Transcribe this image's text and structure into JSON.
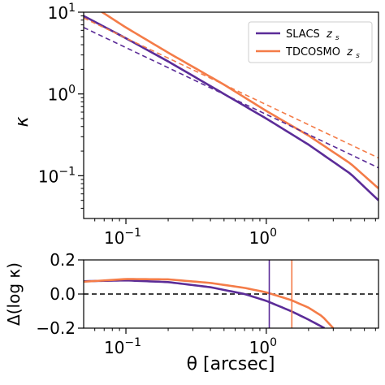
{
  "colors": {
    "slacs": "#5b2c98",
    "tdcosmo": "#f47c48",
    "reference": "#000000"
  },
  "chart_data": [
    {
      "type": "line",
      "panel": "top",
      "ylabel": "κ",
      "xscale": "log",
      "yscale": "log",
      "xlim": [
        0.05,
        6.3
      ],
      "ylim": [
        0.03,
        10
      ],
      "xtick_labels": [
        {
          "value": 0.1,
          "mantissa": "10",
          "exponent": "−1"
        },
        {
          "value": 1,
          "mantissa": "10",
          "exponent": "0"
        }
      ],
      "ytick_labels": [
        {
          "value": 0.1,
          "mantissa": "10",
          "exponent": "−1"
        },
        {
          "value": 1,
          "mantissa": "10",
          "exponent": "0"
        },
        {
          "value": 10,
          "mantissa": "10",
          "exponent": "1"
        }
      ],
      "legend": {
        "placement": "top-right",
        "entries": [
          {
            "series": "slacs",
            "label": "SLACS",
            "sub_label": "z",
            "sub_script": "s"
          },
          {
            "series": "tdcosmo",
            "label": "TDCOSMO",
            "sub_label": "z",
            "sub_script": "s"
          }
        ]
      },
      "series": [
        {
          "key": "slacs",
          "style": "solid",
          "x": [
            0.05,
            0.1,
            0.2,
            0.5,
            1.0,
            2.0,
            4.0,
            6.3
          ],
          "y": [
            9.0,
            4.8,
            2.5,
            1.0,
            0.5,
            0.24,
            0.105,
            0.05
          ]
        },
        {
          "key": "tdcosmo",
          "style": "solid",
          "x": [
            0.05,
            0.1,
            0.2,
            0.5,
            1.0,
            2.0,
            4.0,
            6.3
          ],
          "y": [
            14.0,
            6.5,
            3.2,
            1.3,
            0.62,
            0.31,
            0.14,
            0.07
          ]
        },
        {
          "key": "slacs",
          "style": "dashed",
          "x": [
            0.05,
            6.3
          ],
          "y": [
            6.5,
            0.125
          ]
        },
        {
          "key": "tdcosmo",
          "style": "dashed",
          "x": [
            0.05,
            6.3
          ],
          "y": [
            8.5,
            0.165
          ]
        }
      ]
    },
    {
      "type": "line",
      "panel": "bottom",
      "xlabel": "θ [arcsec]",
      "ylabel": "Δ(log κ)",
      "xscale": "log",
      "xlim": [
        0.05,
        6.3
      ],
      "ylim": [
        -0.2,
        0.2
      ],
      "xtick_labels": [
        {
          "value": 0.1,
          "mantissa": "10",
          "exponent": "−1"
        },
        {
          "value": 1,
          "mantissa": "10",
          "exponent": "0"
        }
      ],
      "ytick_labels": [
        "0.2",
        "0.0",
        "−0.2"
      ],
      "ytick_values": [
        0.2,
        0.0,
        -0.2
      ],
      "reference_line": {
        "y": 0.0,
        "style": "dashed"
      },
      "series": [
        {
          "key": "slacs",
          "x": [
            0.05,
            0.1,
            0.2,
            0.4,
            0.7,
            1.0,
            1.5,
            2.0,
            2.6
          ],
          "y": [
            0.075,
            0.08,
            0.07,
            0.04,
            0.0,
            -0.04,
            -0.1,
            -0.15,
            -0.2
          ]
        },
        {
          "key": "tdcosmo",
          "x": [
            0.05,
            0.1,
            0.2,
            0.4,
            0.7,
            1.0,
            1.5,
            2.0,
            2.5,
            3.0
          ],
          "y": [
            0.072,
            0.088,
            0.086,
            0.065,
            0.036,
            0.01,
            -0.035,
            -0.08,
            -0.13,
            -0.2
          ]
        }
      ],
      "vertical_markers": [
        {
          "key": "slacs",
          "x": 1.05
        },
        {
          "key": "tdcosmo",
          "x": 1.52
        }
      ]
    }
  ]
}
